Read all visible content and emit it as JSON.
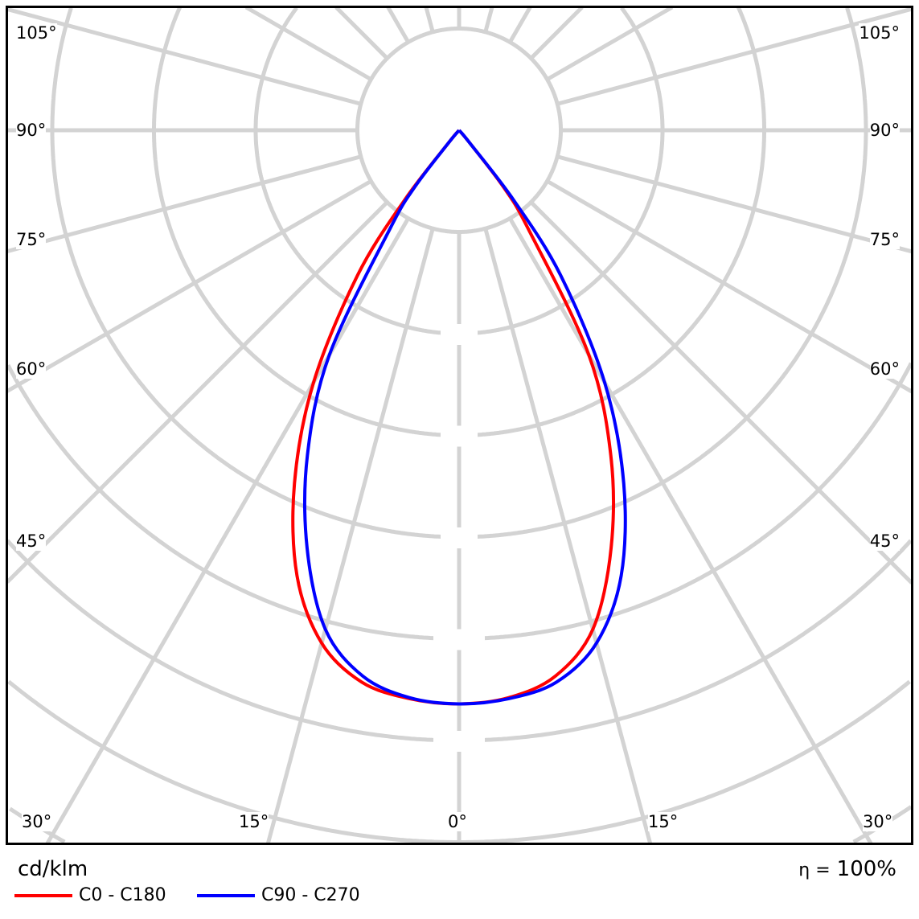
{
  "chart_data": {
    "type": "polar",
    "title": "",
    "unit_label": "cd/klm",
    "efficiency_label": "η = 100%",
    "efficiency_symbol": "η =",
    "efficiency_value": "100%",
    "angle_labels_left": [
      {
        "angle": 105,
        "text": "105°"
      },
      {
        "angle": 90,
        "text": "90°"
      },
      {
        "angle": 75,
        "text": "75°"
      },
      {
        "angle": 60,
        "text": "60°"
      },
      {
        "angle": 45,
        "text": "45°"
      }
    ],
    "angle_labels_right": [
      {
        "angle": 105,
        "text": "105°"
      },
      {
        "angle": 90,
        "text": "90°"
      },
      {
        "angle": 75,
        "text": "75°"
      },
      {
        "angle": 60,
        "text": "60°"
      },
      {
        "angle": 45,
        "text": "45°"
      }
    ],
    "angle_labels_bottom": [
      "30°",
      "15°",
      "0°",
      "15°",
      "30°"
    ],
    "grid": true,
    "angle_step_deg": 15,
    "radial_rings": 9,
    "gamma_deg": [
      0,
      5,
      10,
      15,
      20,
      25,
      30,
      35,
      38,
      40,
      45
    ],
    "series": [
      {
        "name": "C0 - C180",
        "color": "#ff0000",
        "left": [
          5.64,
          5.61,
          5.51,
          5.22,
          4.66,
          3.83,
          2.86,
          1.74,
          0.87,
          0.16,
          0
        ],
        "right": [
          5.64,
          5.6,
          5.45,
          5.08,
          4.37,
          3.53,
          2.55,
          1.19,
          0.71,
          0.16,
          0
        ]
      },
      {
        "name": "C90 - C270",
        "color": "#0000ff",
        "left": [
          5.64,
          5.6,
          5.45,
          5.08,
          4.37,
          3.53,
          2.55,
          1.19,
          0.71,
          0.16,
          0
        ],
        "right": [
          5.64,
          5.61,
          5.51,
          5.22,
          4.66,
          3.83,
          2.86,
          1.74,
          0.87,
          0.16,
          0
        ]
      }
    ],
    "grid_color": "#d3d3d3"
  }
}
